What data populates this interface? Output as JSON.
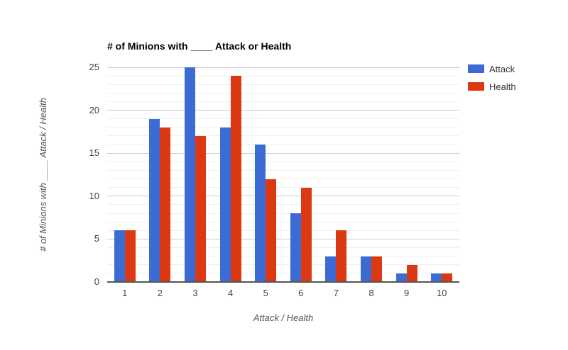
{
  "chart_data": {
    "type": "bar",
    "title": "# of Minions with ____ Attack or Health",
    "xlabel": "Attack / Health",
    "ylabel": "# of Minions with ____ Attack / Health",
    "categories": [
      "1",
      "2",
      "3",
      "4",
      "5",
      "6",
      "7",
      "8",
      "9",
      "10"
    ],
    "series": [
      {
        "name": "Attack",
        "color": "#3c6bd4",
        "values": [
          6,
          19,
          25,
          18,
          16,
          8,
          3,
          3,
          1,
          1
        ]
      },
      {
        "name": "Health",
        "color": "#dc3912",
        "values": [
          6,
          18,
          17,
          24,
          12,
          11,
          6,
          3,
          2,
          1
        ]
      }
    ],
    "ylim": [
      0,
      25
    ],
    "y_ticks": [
      0,
      5,
      10,
      15,
      20,
      25
    ],
    "grid": {
      "minor_every": 1,
      "major_every": 5,
      "major_color": "#cccccc",
      "minor_color": "#efefef"
    },
    "axis_line_color": "#555555",
    "legend_position": "right"
  }
}
